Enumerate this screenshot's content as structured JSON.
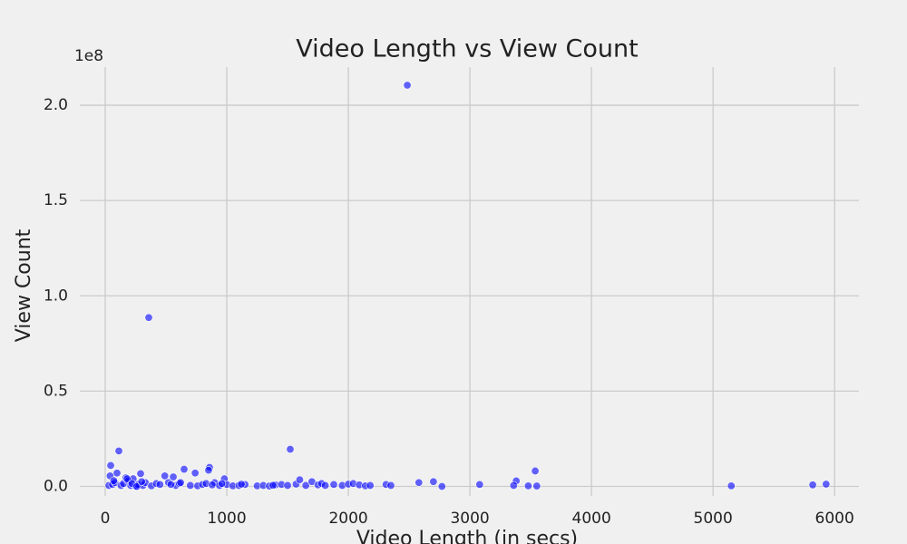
{
  "chart_data": {
    "type": "scatter",
    "title": "Video Length vs View Count",
    "x_label": "Video Length (in secs)",
    "y_label": "View Count",
    "y_offset_label": "1e8",
    "color": "#0000ff",
    "grid": true,
    "xlim": [
      -209,
      6200
    ],
    "ylim": [
      -5000000,
      220000000
    ],
    "xticks": [
      0,
      1000,
      2000,
      3000,
      4000,
      5000,
      6000
    ],
    "yticks": [
      {
        "value": 0,
        "label": "0.0"
      },
      {
        "value": 50000000,
        "label": "0.5"
      },
      {
        "value": 100000000,
        "label": "1.0"
      },
      {
        "value": 150000000,
        "label": "1.5"
      },
      {
        "value": 200000000,
        "label": "2.0"
      }
    ],
    "x": [
      2485,
      358,
      1522,
      112,
      45,
      97,
      291,
      649,
      858,
      850,
      740,
      980,
      560,
      490,
      3537,
      3381,
      2700,
      2580,
      2770,
      3080,
      3360,
      3480,
      3550,
      5150,
      5820,
      5930,
      30,
      60,
      80,
      130,
      150,
      170,
      190,
      210,
      230,
      250,
      270,
      310,
      330,
      380,
      420,
      450,
      520,
      580,
      610,
      700,
      760,
      800,
      830,
      900,
      940,
      1000,
      1050,
      1100,
      1150,
      1250,
      1300,
      1350,
      1400,
      1450,
      1500,
      1570,
      1600,
      1650,
      1700,
      1750,
      1780,
      1810,
      1880,
      1950,
      2000,
      2040,
      2090,
      2140,
      2180,
      2310,
      2350,
      40,
      70,
      180,
      220,
      260,
      300,
      540,
      620,
      880,
      960,
      1120,
      1380
    ],
    "values": [
      210500000,
      88600000,
      19500000,
      18600000,
      11000000,
      7000000,
      6700000,
      9000000,
      10000000,
      8500000,
      7000000,
      4000000,
      5000000,
      5500000,
      8100000,
      2900000,
      2500000,
      2000000,
      0,
      1000000,
      500000,
      300000,
      200000,
      300000,
      800000,
      1200000,
      500000,
      1000000,
      2000000,
      500000,
      1500000,
      4500000,
      3000000,
      500000,
      4000000,
      200000,
      1000000,
      500000,
      2000000,
      300000,
      1500000,
      1000000,
      2000000,
      500000,
      1500000,
      500000,
      300000,
      1000000,
      1500000,
      2000000,
      500000,
      1000000,
      300000,
      500000,
      1000000,
      300000,
      500000,
      200000,
      800000,
      1000000,
      500000,
      1200000,
      3500000,
      500000,
      2500000,
      800000,
      1500000,
      500000,
      1000000,
      500000,
      1200000,
      1500000,
      800000,
      300000,
      500000,
      1000000,
      500000,
      5500000,
      3000000,
      4000000,
      1500000,
      0,
      2500000,
      1000000,
      2000000,
      800000,
      1500000,
      1200000,
      600000
    ]
  }
}
